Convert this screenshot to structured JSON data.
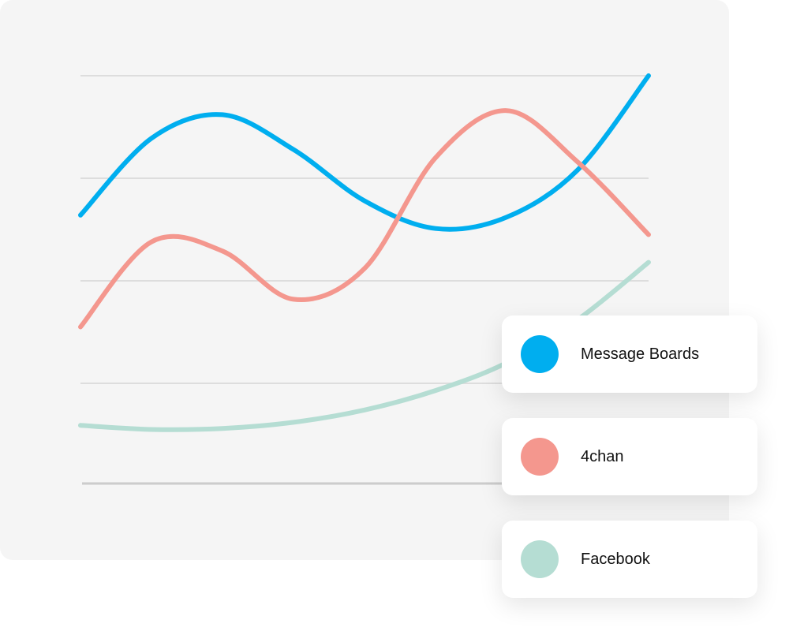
{
  "chart_data": {
    "type": "line",
    "x": [
      0,
      1,
      2,
      3,
      4,
      5,
      6,
      7,
      8
    ],
    "xlim": [
      0,
      8
    ],
    "ylim": [
      0,
      4
    ],
    "yticks": [
      1,
      2,
      3,
      4
    ],
    "grid": true,
    "smooth": true,
    "series": [
      {
        "name": "Message Boards",
        "color": "#00aeef",
        "values": [
          2.64,
          3.39,
          3.62,
          3.28,
          2.78,
          2.51,
          2.62,
          3.08,
          4.0
        ]
      },
      {
        "name": "4chan",
        "color": "#f4978e",
        "values": [
          1.55,
          2.38,
          2.29,
          1.82,
          2.12,
          3.2,
          3.66,
          3.16,
          2.45
        ]
      },
      {
        "name": "Facebook",
        "color": "#b5ddd3",
        "values": [
          0.59,
          0.55,
          0.56,
          0.62,
          0.74,
          0.93,
          1.2,
          1.62,
          2.18
        ]
      }
    ]
  }
}
